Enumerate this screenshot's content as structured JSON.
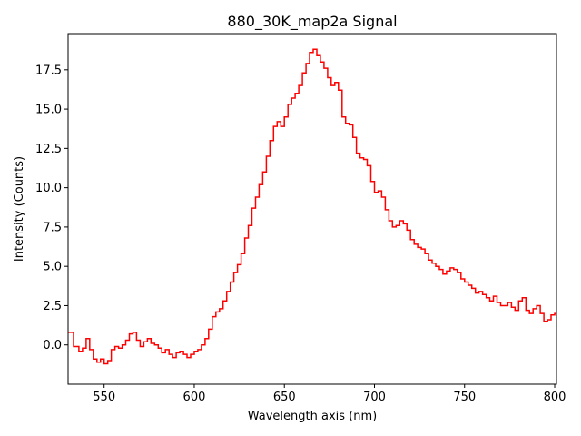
{
  "chart_data": {
    "type": "line",
    "title": "880_30K_map2a Signal",
    "xlabel": "Wavelength axis (nm)",
    "ylabel": "Intensity (Counts)",
    "xlim": [
      530,
      801
    ],
    "ylim": [
      -2.5,
      19.8
    ],
    "x_ticks": [
      550,
      600,
      650,
      700,
      750,
      800
    ],
    "x_tick_labels": [
      "550",
      "600",
      "650",
      "700",
      "750",
      "800"
    ],
    "y_ticks": [
      0,
      2.5,
      5,
      7.5,
      10,
      12.5,
      15,
      17.5
    ],
    "y_tick_labels": [
      "0.0",
      "2.5",
      "5.0",
      "7.5",
      "10.0",
      "12.5",
      "15.0",
      "17.5"
    ],
    "grid": false,
    "line_style": "steps",
    "series": [
      {
        "color": "#ff0000",
        "x": [
          530,
          533,
          536,
          538,
          540,
          542,
          544,
          546,
          548,
          550,
          552,
          554,
          556,
          558,
          560,
          562,
          564,
          566,
          568,
          570,
          572,
          574,
          576,
          578,
          580,
          582,
          584,
          586,
          588,
          590,
          592,
          594,
          596,
          598,
          600,
          602,
          604,
          606,
          608,
          610,
          612,
          614,
          616,
          618,
          620,
          622,
          624,
          626,
          628,
          630,
          632,
          634,
          636,
          638,
          640,
          642,
          644,
          646,
          648,
          650,
          652,
          654,
          656,
          658,
          660,
          662,
          664,
          666,
          668,
          670,
          672,
          674,
          676,
          678,
          680,
          682,
          684,
          686,
          688,
          690,
          692,
          694,
          696,
          698,
          700,
          702,
          704,
          706,
          708,
          710,
          712,
          714,
          716,
          718,
          720,
          722,
          724,
          726,
          728,
          730,
          732,
          734,
          736,
          738,
          740,
          742,
          744,
          746,
          748,
          750,
          752,
          754,
          756,
          758,
          760,
          762,
          764,
          766,
          768,
          770,
          772,
          774,
          776,
          778,
          780,
          782,
          784,
          786,
          788,
          790,
          792,
          794,
          796,
          798,
          800,
          801
        ],
        "y": [
          0.8,
          -0.1,
          -0.4,
          -0.2,
          0.4,
          -0.3,
          -0.9,
          -1.1,
          -0.9,
          -1.2,
          -1.0,
          -0.3,
          -0.1,
          -0.2,
          0.0,
          0.3,
          0.7,
          0.8,
          0.3,
          -0.1,
          0.2,
          0.4,
          0.1,
          0.0,
          -0.2,
          -0.5,
          -0.3,
          -0.6,
          -0.8,
          -0.5,
          -0.4,
          -0.6,
          -0.8,
          -0.6,
          -0.4,
          -0.3,
          0.0,
          0.4,
          1.0,
          1.8,
          2.1,
          2.3,
          2.8,
          3.4,
          4.0,
          4.6,
          5.1,
          5.8,
          6.8,
          7.6,
          8.7,
          9.4,
          10.2,
          11.0,
          12.0,
          13.0,
          13.9,
          14.2,
          13.9,
          14.5,
          15.3,
          15.7,
          16.0,
          16.5,
          17.3,
          17.9,
          18.6,
          18.8,
          18.4,
          18.0,
          17.6,
          17.0,
          16.5,
          16.7,
          16.2,
          14.5,
          14.1,
          14.0,
          13.2,
          12.2,
          11.9,
          11.8,
          11.4,
          10.4,
          9.7,
          9.8,
          9.4,
          8.6,
          7.9,
          7.5,
          7.6,
          7.9,
          7.7,
          7.3,
          6.7,
          6.4,
          6.2,
          6.1,
          5.8,
          5.4,
          5.2,
          5.0,
          4.8,
          4.5,
          4.7,
          4.9,
          4.8,
          4.6,
          4.2,
          4.0,
          3.8,
          3.6,
          3.3,
          3.4,
          3.2,
          3.0,
          2.8,
          3.1,
          2.7,
          2.5,
          2.5,
          2.7,
          2.4,
          2.2,
          2.8,
          3.0,
          2.2,
          2.0,
          2.3,
          2.5,
          2.0,
          1.5,
          1.6,
          1.9,
          2.0,
          0.4
        ]
      }
    ]
  }
}
